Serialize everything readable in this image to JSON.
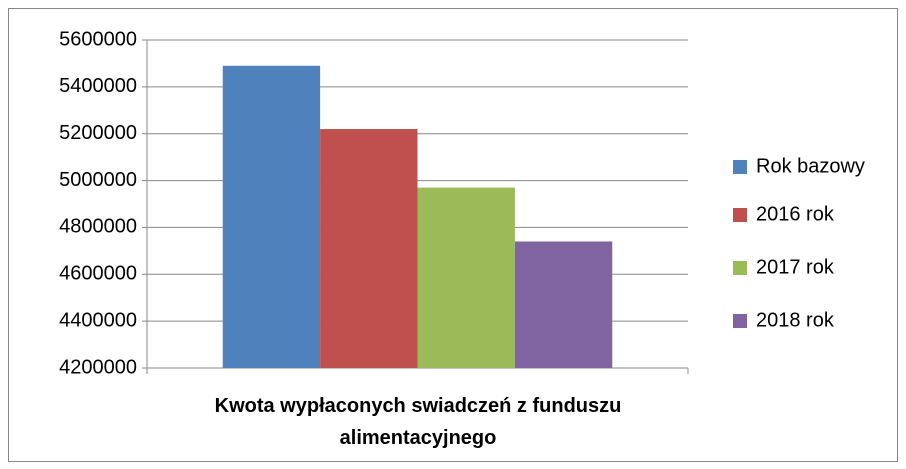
{
  "chart_data": {
    "type": "bar",
    "categories": [
      "Kwota wypłaconych swiadczeń z funduszu alimentacyjnego"
    ],
    "series": [
      {
        "name": "Rok bazowy",
        "color": "#4f81bd",
        "values": [
          5490000
        ]
      },
      {
        "name": "2016 rok",
        "color": "#c0504d",
        "values": [
          5220000
        ]
      },
      {
        "name": "2017 rok",
        "color": "#9bbb59",
        "values": [
          4970000
        ]
      },
      {
        "name": "2018 rok",
        "color": "#8064a2",
        "values": [
          4740000
        ]
      }
    ],
    "ylim": [
      4200000,
      5600000
    ],
    "yticks": [
      4200000,
      4400000,
      4600000,
      4800000,
      5000000,
      5200000,
      5400000,
      5600000
    ],
    "grid": true,
    "legend": "right"
  }
}
